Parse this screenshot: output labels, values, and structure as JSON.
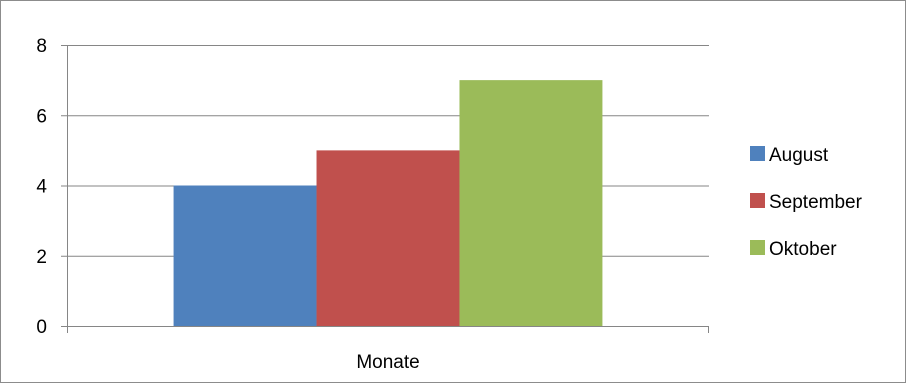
{
  "chart_data": {
    "type": "bar",
    "categories": [
      "Monate"
    ],
    "series": [
      {
        "name": "August",
        "values": [
          4
        ],
        "color": "#4f81bd"
      },
      {
        "name": "September",
        "values": [
          5
        ],
        "color": "#c0504d"
      },
      {
        "name": "Oktober",
        "values": [
          7
        ],
        "color": "#9bbb59"
      }
    ],
    "title": "",
    "xlabel": "",
    "ylabel": "",
    "ylim": [
      0,
      8
    ],
    "yticks": [
      "0",
      "2",
      "4",
      "6",
      "8"
    ],
    "grid": true,
    "legend": "right"
  }
}
